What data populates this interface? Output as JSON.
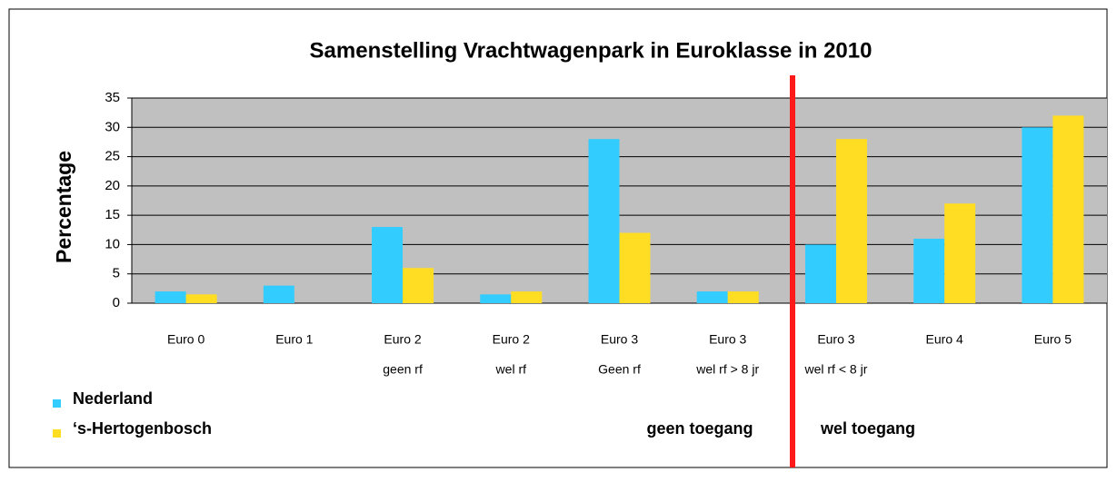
{
  "chart_data": {
    "type": "bar",
    "title": "Samenstelling Vrachtwagenpark in Euroklasse in 2010",
    "y_label": "Percentage",
    "categories": [
      [
        "Euro 0"
      ],
      [
        "Euro 1"
      ],
      [
        "Euro 2",
        "geen rf"
      ],
      [
        "Euro 2",
        "wel rf"
      ],
      [
        "Euro 3",
        "Geen rf"
      ],
      [
        "Euro 3",
        "wel rf > 8 jr"
      ],
      [
        "Euro 3",
        "wel rf < 8 jr"
      ],
      [
        "Euro 4"
      ],
      [
        "Euro 5"
      ]
    ],
    "series": [
      {
        "name": "Nederland",
        "color": "#33ccff",
        "values": [
          2,
          3,
          13,
          1.5,
          28,
          2,
          10,
          11,
          30
        ]
      },
      {
        "name": "‘s-Hertogenbosch",
        "color": "#ffdd22",
        "values": [
          1.5,
          0,
          6,
          2,
          12,
          2,
          28,
          17,
          32
        ]
      }
    ],
    "ylim": [
      0,
      35
    ],
    "yticks": [
      0,
      5,
      10,
      15,
      20,
      25,
      30,
      35
    ],
    "grid": true,
    "legend": "bottom-left",
    "annotations": [
      "geen toegang",
      "wel toegang"
    ]
  }
}
